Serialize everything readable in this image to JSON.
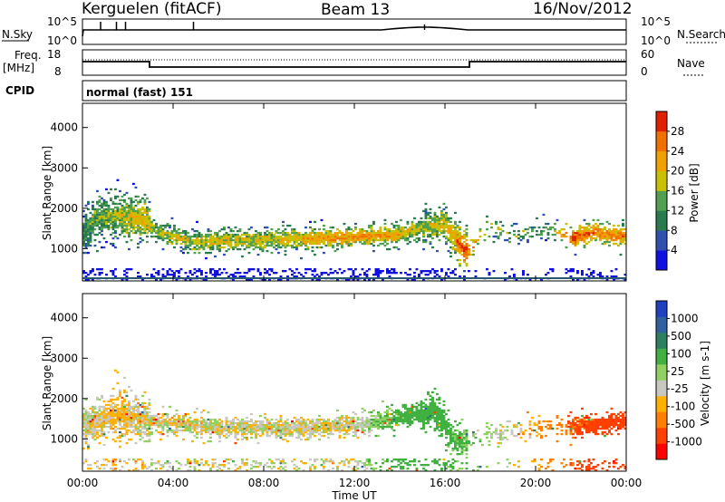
{
  "header": {
    "station": "Kerguelen (fitACF)",
    "beam": "Beam 13",
    "date": "16/Nov/2012"
  },
  "noise_panel": {
    "left_label": "N.Sky",
    "left_top_tick": "10^5",
    "left_bottom_tick": "10^0",
    "right_top_tick": "10^5",
    "right_bottom_tick": "10^0",
    "right_label": "N.Search"
  },
  "freq_panel": {
    "left_label_line1": "Freq.",
    "left_label_line2": "[MHz]",
    "left_top_tick": "18",
    "left_bottom_tick": "8",
    "right_top_tick": "60",
    "right_bottom_tick": "0",
    "right_label": "Nave"
  },
  "cpid": {
    "label": "CPID",
    "value": "normal (fast) 151"
  },
  "colors": {
    "power_scale": [
      "#1010e0",
      "#3050b0",
      "#2a7a50",
      "#50a050",
      "#c8c000",
      "#f0a000",
      "#f07000",
      "#e02000"
    ],
    "velocity_scale": [
      "#ff0000",
      "#ff4000",
      "#ff8000",
      "#ffb000",
      "#c8c8c0",
      "#90d060",
      "#40b040",
      "#2a8060",
      "#3060a0",
      "#2040c0"
    ]
  },
  "chart_data": [
    {
      "type": "heatmap",
      "name": "power",
      "xlabel": "",
      "ylabel": "Slant Range [km]",
      "ylim": [
        200,
        4600
      ],
      "yticks": [
        "1000",
        "2000",
        "3000",
        "4000"
      ],
      "xticks": [
        "00:00",
        "04:00",
        "08:00",
        "12:00",
        "16:00",
        "20:00",
        "00:00"
      ],
      "colorbar_label": "Power [dB]",
      "colorbar_ticks": [
        "4",
        "8",
        "12",
        "16",
        "20",
        "24",
        "28"
      ],
      "colorbar_range": [
        0,
        30
      ],
      "x_hours": [
        0,
        0.5,
        1.5,
        2.8,
        3.2,
        5,
        8,
        11,
        13.5,
        15,
        16,
        16.9,
        18,
        19,
        20.5,
        21.7,
        22.5,
        23.5
      ],
      "range_center_km": [
        1300,
        1750,
        1800,
        1700,
        1400,
        1150,
        1200,
        1250,
        1300,
        1500,
        1600,
        900,
        1500,
        1300,
        1450,
        1250,
        1400,
        1300
      ],
      "typical_power_db": [
        10,
        14,
        16,
        20,
        16,
        18,
        18,
        22,
        22,
        16,
        18,
        28,
        14,
        14,
        12,
        28,
        26,
        24
      ]
    },
    {
      "type": "heatmap",
      "name": "velocity",
      "xlabel": "Time UT",
      "ylabel": "Slant Range [km]",
      "ylim": [
        200,
        4600
      ],
      "yticks": [
        "1000",
        "2000",
        "3000",
        "4000"
      ],
      "xticks": [
        "00:00",
        "04:00",
        "08:00",
        "12:00",
        "16:00",
        "20:00",
        "00:00"
      ],
      "colorbar_label": "Velocity [m s-1]",
      "colorbar_ticks": [
        "-1000",
        "-500",
        "-100",
        "-25",
        "25",
        "100",
        "500",
        "1000"
      ],
      "colorbar_range": [
        -1000,
        1000
      ],
      "x_hours": [
        0,
        1.5,
        3,
        6,
        9,
        12,
        14,
        15.5,
        16.5,
        19,
        22,
        23.5
      ],
      "range_center_km": [
        1300,
        1600,
        1400,
        1250,
        1250,
        1300,
        1500,
        1700,
        900,
        1200,
        1300,
        1400
      ],
      "typical_velocity_ms": [
        0,
        -50,
        0,
        0,
        0,
        0,
        150,
        200,
        120,
        0,
        -300,
        -400
      ]
    }
  ]
}
